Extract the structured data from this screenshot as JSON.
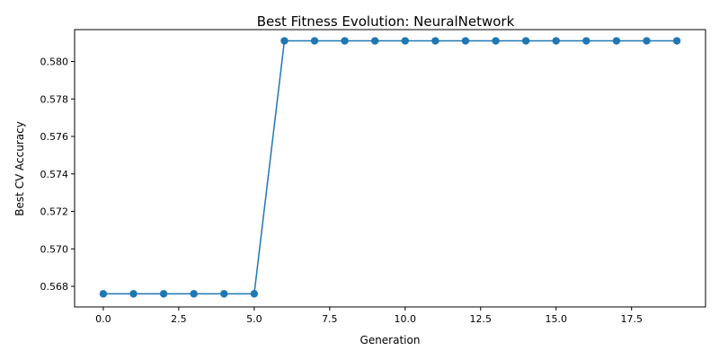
{
  "chart_data": {
    "type": "line",
    "title": "Best Fitness Evolution: NeuralNetwork",
    "xlabel": "Generation",
    "ylabel": "Best CV Accuracy",
    "xlim": [
      -0.95,
      19.95
    ],
    "ylim": [
      0.5669,
      0.5817
    ],
    "xticks": [
      0.0,
      2.5,
      5.0,
      7.5,
      10.0,
      12.5,
      15.0,
      17.5
    ],
    "xtick_labels": [
      "0.0",
      "2.5",
      "5.0",
      "7.5",
      "10.0",
      "12.5",
      "15.0",
      "17.5"
    ],
    "yticks": [
      0.568,
      0.57,
      0.572,
      0.574,
      0.576,
      0.578,
      0.58
    ],
    "ytick_labels": [
      "0.568",
      "0.570",
      "0.572",
      "0.574",
      "0.576",
      "0.578",
      "0.580"
    ],
    "grid": false,
    "series": [
      {
        "color": "#1f77b4",
        "marker": "circle",
        "x": [
          0,
          1,
          2,
          3,
          4,
          5,
          6,
          7,
          8,
          9,
          10,
          11,
          12,
          13,
          14,
          15,
          16,
          17,
          18,
          19
        ],
        "y": [
          0.5676,
          0.5676,
          0.5676,
          0.5676,
          0.5676,
          0.5676,
          0.5811,
          0.5811,
          0.5811,
          0.5811,
          0.5811,
          0.5811,
          0.5811,
          0.5811,
          0.5811,
          0.5811,
          0.5811,
          0.5811,
          0.5811,
          0.5811
        ]
      }
    ]
  }
}
